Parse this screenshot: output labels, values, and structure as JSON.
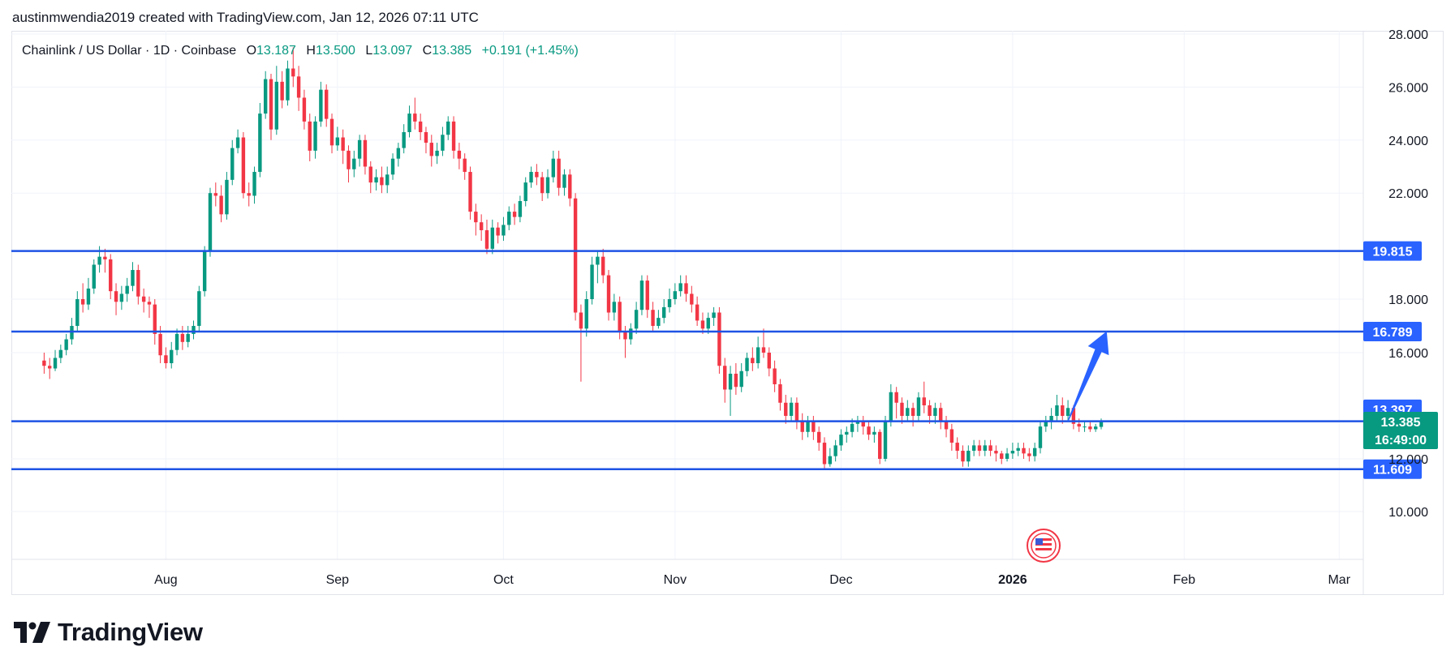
{
  "header": {
    "text": "austinmwendia2019 created with TradingView.com, Jan 12, 2026 07:11 UTC"
  },
  "legend": {
    "symbol": "Chainlink / US Dollar · 1D · Coinbase",
    "open_label": "O",
    "open": "13.187",
    "high_label": "H",
    "high": "13.500",
    "low_label": "L",
    "low": "13.097",
    "close_label": "C",
    "close": "13.385",
    "change": "+0.191 (+1.45%)"
  },
  "brand": {
    "name": "TradingView"
  },
  "colors": {
    "up": "#089981",
    "down": "#f23645",
    "level_line": "#1e53e5",
    "arrow": "#2962ff",
    "label_bg": "#2962ff"
  },
  "chart_data": {
    "type": "candlestick",
    "title": "Chainlink / US Dollar · 1D · Coinbase",
    "y_ticks": [
      28.0,
      26.0,
      24.0,
      22.0,
      18.0,
      16.0,
      12.0,
      10.0
    ],
    "y_tick_labels": [
      "28.000",
      "26.000",
      "24.000",
      "22.000",
      "18.000",
      "16.000",
      "12.000",
      "10.000"
    ],
    "x_tick_labels": [
      "Aug",
      "Sep",
      "Oct",
      "Nov",
      "Dec",
      "2026",
      "Feb",
      "Mar"
    ],
    "horizontal_levels": [
      {
        "value": 19.815,
        "label": "19.815"
      },
      {
        "value": 16.789,
        "label": "16.789"
      },
      {
        "value": 13.397,
        "label": "13.397"
      },
      {
        "value": 11.609,
        "label": "11.609"
      }
    ],
    "last_price": {
      "value": 13.385,
      "label": "13.385",
      "countdown": "16:49:00"
    },
    "arrow": {
      "from": {
        "date": "2026-01-11",
        "value": 13.4
      },
      "to": {
        "date": "2026-01-18",
        "value": 16.8
      }
    },
    "candles_start_date": "2025-07-10",
    "candles": [
      [
        15.7,
        15.5,
        16.0,
        15.2
      ],
      [
        15.5,
        15.4,
        15.8,
        15.0
      ],
      [
        15.4,
        15.8,
        16.1,
        15.3
      ],
      [
        15.8,
        16.1,
        16.3,
        15.6
      ],
      [
        16.1,
        16.5,
        16.7,
        15.9
      ],
      [
        16.5,
        17.0,
        17.3,
        16.3
      ],
      [
        17.0,
        18.0,
        18.3,
        16.8
      ],
      [
        18.0,
        17.8,
        18.6,
        17.5
      ],
      [
        17.8,
        18.4,
        18.8,
        17.6
      ],
      [
        18.4,
        19.3,
        19.5,
        18.2
      ],
      [
        19.3,
        19.6,
        20.0,
        19.0
      ],
      [
        19.6,
        19.5,
        19.9,
        19.0
      ],
      [
        19.5,
        18.3,
        19.7,
        18.0
      ],
      [
        18.3,
        17.9,
        18.6,
        17.4
      ],
      [
        17.9,
        18.2,
        18.5,
        17.6
      ],
      [
        18.2,
        18.5,
        18.8,
        17.9
      ],
      [
        18.5,
        19.1,
        19.4,
        18.3
      ],
      [
        19.1,
        18.1,
        19.3,
        17.8
      ],
      [
        18.1,
        17.9,
        18.4,
        17.5
      ],
      [
        17.9,
        17.8,
        18.1,
        17.3
      ],
      [
        17.8,
        16.7,
        18.0,
        16.3
      ],
      [
        16.7,
        15.9,
        17.0,
        15.6
      ],
      [
        15.9,
        15.6,
        16.2,
        15.4
      ],
      [
        15.6,
        16.1,
        16.4,
        15.4
      ],
      [
        16.1,
        16.7,
        16.9,
        15.9
      ],
      [
        16.7,
        16.4,
        17.0,
        16.1
      ],
      [
        16.4,
        16.7,
        17.0,
        16.2
      ],
      [
        16.7,
        17.0,
        17.2,
        16.5
      ],
      [
        17.0,
        18.3,
        18.5,
        16.8
      ],
      [
        18.3,
        19.8,
        20.0,
        18.1
      ],
      [
        19.8,
        22.0,
        22.2,
        19.6
      ],
      [
        22.0,
        21.9,
        22.4,
        21.5
      ],
      [
        21.9,
        21.2,
        22.3,
        20.9
      ],
      [
        21.2,
        22.5,
        22.8,
        21.0
      ],
      [
        22.5,
        23.7,
        24.0,
        22.3
      ],
      [
        23.7,
        24.1,
        24.4,
        23.5
      ],
      [
        24.1,
        22.0,
        24.3,
        21.8
      ],
      [
        22.0,
        21.9,
        22.4,
        21.5
      ],
      [
        21.9,
        22.8,
        23.0,
        21.6
      ],
      [
        22.8,
        25.0,
        25.4,
        22.6
      ],
      [
        25.0,
        26.3,
        26.6,
        24.8
      ],
      [
        26.3,
        24.4,
        26.5,
        24.0
      ],
      [
        24.4,
        26.2,
        26.8,
        24.2
      ],
      [
        26.2,
        25.5,
        26.6,
        25.2
      ],
      [
        25.5,
        26.7,
        27.0,
        25.3
      ],
      [
        26.7,
        26.4,
        27.5,
        26.0
      ],
      [
        26.4,
        25.6,
        26.8,
        25.1
      ],
      [
        25.6,
        24.7,
        25.9,
        24.4
      ],
      [
        24.7,
        23.6,
        25.0,
        23.2
      ],
      [
        23.6,
        24.7,
        24.9,
        23.3
      ],
      [
        24.7,
        25.9,
        26.2,
        24.5
      ],
      [
        25.9,
        24.8,
        26.1,
        24.5
      ],
      [
        24.8,
        23.8,
        25.0,
        23.5
      ],
      [
        23.8,
        24.1,
        24.5,
        23.6
      ],
      [
        24.1,
        23.6,
        24.4,
        23.1
      ],
      [
        23.6,
        22.9,
        23.8,
        22.4
      ],
      [
        22.9,
        23.3,
        23.6,
        22.6
      ],
      [
        23.3,
        24.0,
        24.2,
        23.0
      ],
      [
        24.0,
        23.0,
        24.2,
        22.7
      ],
      [
        23.0,
        22.4,
        23.2,
        22.0
      ],
      [
        22.4,
        22.6,
        22.9,
        22.1
      ],
      [
        22.6,
        22.3,
        23.0,
        22.0
      ],
      [
        22.3,
        22.7,
        23.0,
        22.0
      ],
      [
        22.7,
        23.3,
        23.5,
        22.5
      ],
      [
        23.3,
        23.7,
        23.9,
        23.0
      ],
      [
        23.7,
        24.3,
        24.6,
        23.5
      ],
      [
        24.3,
        25.0,
        25.3,
        24.1
      ],
      [
        25.0,
        24.7,
        25.6,
        24.4
      ],
      [
        24.7,
        24.3,
        25.0,
        24.0
      ],
      [
        24.3,
        23.9,
        24.5,
        23.5
      ],
      [
        23.9,
        23.4,
        24.2,
        23.0
      ],
      [
        23.4,
        23.6,
        23.9,
        23.1
      ],
      [
        23.6,
        24.2,
        24.5,
        23.4
      ],
      [
        24.2,
        24.7,
        24.9,
        24.0
      ],
      [
        24.7,
        23.6,
        24.9,
        23.3
      ],
      [
        23.6,
        23.3,
        23.9,
        22.9
      ],
      [
        23.3,
        22.8,
        23.5,
        22.5
      ],
      [
        22.8,
        21.3,
        23.0,
        21.0
      ],
      [
        21.3,
        20.9,
        21.6,
        20.4
      ],
      [
        20.9,
        20.6,
        21.2,
        20.2
      ],
      [
        20.6,
        19.9,
        21.0,
        19.7
      ],
      [
        19.9,
        20.7,
        21.0,
        19.7
      ],
      [
        20.7,
        20.4,
        20.9,
        20.1
      ],
      [
        20.4,
        20.8,
        21.1,
        20.2
      ],
      [
        20.8,
        21.3,
        21.5,
        20.6
      ],
      [
        21.3,
        21.1,
        21.6,
        20.8
      ],
      [
        21.1,
        21.7,
        21.9,
        20.9
      ],
      [
        21.7,
        22.4,
        22.6,
        21.5
      ],
      [
        22.4,
        22.8,
        23.0,
        22.2
      ],
      [
        22.8,
        22.6,
        23.1,
        22.3
      ],
      [
        22.6,
        22.0,
        22.8,
        21.7
      ],
      [
        22.0,
        22.6,
        22.9,
        21.8
      ],
      [
        22.6,
        23.3,
        23.6,
        22.4
      ],
      [
        23.3,
        22.2,
        23.6,
        21.9
      ],
      [
        22.2,
        22.7,
        22.9,
        21.9
      ],
      [
        22.7,
        21.8,
        22.9,
        21.5
      ],
      [
        21.8,
        17.5,
        22.0,
        17.2
      ],
      [
        17.5,
        16.9,
        17.8,
        14.9
      ],
      [
        16.9,
        18.0,
        18.3,
        16.6
      ],
      [
        18.0,
        19.3,
        19.6,
        17.8
      ],
      [
        19.3,
        19.6,
        19.8,
        18.6
      ],
      [
        19.6,
        18.9,
        19.9,
        18.6
      ],
      [
        18.9,
        17.5,
        19.1,
        17.2
      ],
      [
        17.5,
        17.9,
        18.2,
        17.2
      ],
      [
        17.9,
        16.8,
        18.1,
        16.5
      ],
      [
        16.8,
        16.5,
        17.0,
        15.8
      ],
      [
        16.5,
        16.9,
        17.1,
        16.3
      ],
      [
        16.9,
        17.6,
        17.9,
        16.7
      ],
      [
        17.6,
        18.7,
        18.9,
        17.4
      ],
      [
        18.7,
        17.6,
        18.9,
        17.3
      ],
      [
        17.6,
        17.0,
        17.9,
        16.8
      ],
      [
        17.0,
        17.3,
        17.6,
        16.9
      ],
      [
        17.3,
        17.7,
        18.0,
        17.1
      ],
      [
        17.7,
        18.0,
        18.4,
        17.5
      ],
      [
        18.0,
        18.3,
        18.6,
        17.8
      ],
      [
        18.3,
        18.6,
        18.9,
        18.1
      ],
      [
        18.6,
        18.2,
        18.9,
        17.9
      ],
      [
        18.2,
        17.8,
        18.5,
        17.5
      ],
      [
        17.8,
        17.2,
        18.1,
        17.0
      ],
      [
        17.2,
        16.9,
        17.5,
        16.7
      ],
      [
        16.9,
        17.3,
        17.5,
        16.7
      ],
      [
        17.3,
        17.5,
        17.7,
        17.0
      ],
      [
        17.5,
        15.5,
        17.7,
        15.2
      ],
      [
        15.5,
        14.6,
        15.8,
        14.1
      ],
      [
        14.6,
        15.2,
        15.5,
        13.6
      ],
      [
        15.2,
        14.7,
        15.6,
        14.4
      ],
      [
        14.7,
        15.3,
        15.6,
        14.5
      ],
      [
        15.3,
        15.8,
        16.0,
        15.1
      ],
      [
        15.8,
        15.6,
        16.2,
        15.3
      ],
      [
        15.6,
        16.2,
        16.6,
        15.4
      ],
      [
        16.2,
        16.0,
        16.9,
        15.8
      ],
      [
        16.0,
        15.4,
        16.2,
        15.1
      ],
      [
        15.4,
        14.8,
        15.7,
        14.5
      ],
      [
        14.8,
        14.1,
        15.0,
        13.8
      ],
      [
        14.1,
        13.6,
        14.4,
        13.3
      ],
      [
        13.6,
        14.1,
        14.3,
        13.4
      ],
      [
        14.1,
        13.4,
        14.3,
        13.1
      ],
      [
        13.4,
        13.0,
        13.7,
        12.7
      ],
      [
        13.0,
        13.4,
        13.6,
        12.8
      ],
      [
        13.4,
        13.0,
        13.6,
        12.7
      ],
      [
        13.0,
        12.6,
        13.2,
        12.3
      ],
      [
        12.6,
        11.8,
        12.8,
        11.6
      ],
      [
        11.8,
        12.1,
        12.4,
        11.7
      ],
      [
        12.1,
        12.5,
        12.7,
        11.9
      ],
      [
        12.5,
        12.9,
        13.1,
        12.3
      ],
      [
        12.9,
        13.0,
        13.2,
        12.6
      ],
      [
        13.0,
        13.3,
        13.5,
        12.8
      ],
      [
        13.3,
        13.4,
        13.6,
        13.0
      ],
      [
        13.4,
        13.2,
        13.6,
        12.9
      ],
      [
        13.2,
        12.9,
        13.4,
        12.7
      ],
      [
        12.9,
        13.0,
        13.2,
        12.6
      ],
      [
        13.0,
        12.0,
        13.1,
        11.8
      ],
      [
        12.0,
        13.4,
        13.6,
        11.9
      ],
      [
        13.4,
        14.5,
        14.8,
        13.2
      ],
      [
        14.5,
        14.1,
        14.7,
        13.5
      ],
      [
        14.1,
        13.6,
        14.3,
        13.3
      ],
      [
        13.6,
        13.9,
        14.2,
        13.4
      ],
      [
        13.9,
        13.6,
        14.1,
        13.2
      ],
      [
        13.6,
        14.3,
        14.5,
        13.4
      ],
      [
        14.3,
        14.0,
        14.9,
        13.7
      ],
      [
        14.0,
        13.6,
        14.2,
        13.3
      ],
      [
        13.6,
        13.9,
        14.1,
        13.3
      ],
      [
        13.9,
        13.4,
        14.1,
        13.1
      ],
      [
        13.4,
        13.1,
        13.6,
        12.8
      ],
      [
        13.1,
        12.6,
        13.3,
        12.3
      ],
      [
        12.6,
        12.3,
        12.8,
        12.0
      ],
      [
        12.3,
        11.9,
        12.5,
        11.7
      ],
      [
        11.9,
        12.3,
        12.5,
        11.7
      ],
      [
        12.3,
        12.5,
        12.7,
        12.1
      ],
      [
        12.5,
        12.3,
        12.7,
        12.1
      ],
      [
        12.3,
        12.5,
        12.7,
        12.1
      ],
      [
        12.5,
        12.3,
        12.7,
        12.1
      ],
      [
        12.3,
        12.2,
        12.5,
        11.9
      ],
      [
        12.2,
        12.0,
        12.3,
        11.8
      ],
      [
        12.0,
        12.2,
        12.4,
        11.9
      ],
      [
        12.2,
        12.3,
        12.6,
        12.0
      ],
      [
        12.3,
        12.4,
        12.6,
        12.1
      ],
      [
        12.4,
        12.2,
        12.6,
        12.0
      ],
      [
        12.2,
        12.1,
        12.4,
        11.9
      ],
      [
        12.1,
        12.4,
        12.6,
        11.9
      ],
      [
        12.4,
        13.2,
        13.4,
        12.2
      ],
      [
        13.2,
        13.4,
        13.6,
        13.0
      ],
      [
        13.4,
        13.6,
        13.9,
        13.1
      ],
      [
        13.6,
        14.0,
        14.4,
        13.4
      ],
      [
        14.0,
        13.6,
        14.3,
        13.3
      ],
      [
        13.6,
        13.9,
        14.2,
        13.4
      ],
      [
        13.9,
        13.3,
        14.0,
        13.1
      ],
      [
        13.3,
        13.2,
        13.5,
        13.0
      ],
      [
        13.2,
        13.2,
        13.4,
        13.0
      ],
      [
        13.2,
        13.1,
        13.4,
        13.0
      ],
      [
        13.1,
        13.2,
        13.3,
        13.0
      ],
      [
        13.187,
        13.385,
        13.5,
        13.097
      ]
    ]
  }
}
